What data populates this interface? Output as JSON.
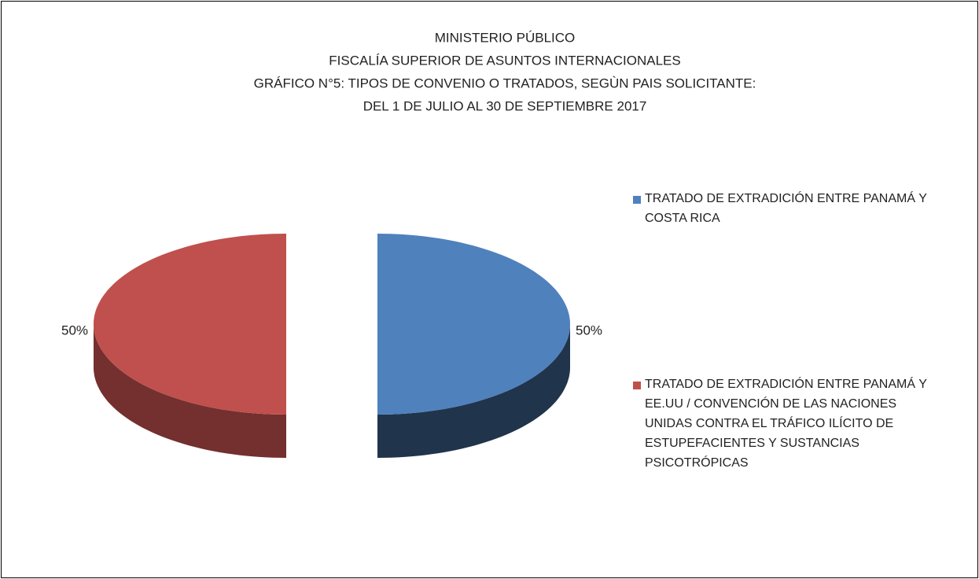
{
  "chart_data": {
    "type": "pie",
    "title": [
      "MINISTERIO PÚBLICO",
      "FISCALÍA SUPERIOR DE ASUNTOS INTERNACIONALES",
      "GRÁFICO N°5: TIPOS DE CONVENIO O TRATADOS, SEGÙN PAIS SOLICITANTE:",
      "DEL 1 DE JULIO AL 30 DE  SEPTIEMBRE 2017"
    ],
    "categories": [
      "TRATADO DE EXTRADICIÓN ENTRE PANAMÁ Y COSTA RICA",
      "TRATADO DE EXTRADICIÓN ENTRE PANAMÁ Y EE.UU / CONVENCIÓN DE LAS NACIONES UNIDAS CONTRA EL TRÁFICO ILÍCITO DE ESTUPEFACIENTES Y SUSTANCIAS PSICOTRÓPICAS"
    ],
    "values": [
      50,
      50
    ],
    "value_labels": [
      "50%",
      "50%"
    ],
    "colors": [
      "#4f81bd",
      "#c0504d"
    ],
    "legend": "right"
  }
}
